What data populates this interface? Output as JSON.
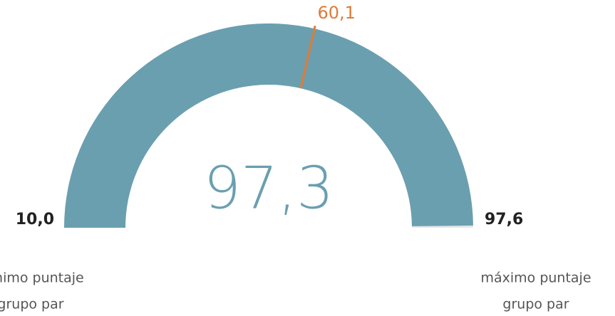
{
  "chart_data": {
    "type": "gauge",
    "value": 97.3,
    "value_label": "97,3",
    "range": [
      10,
      97.6
    ],
    "range_labels": [
      "10,0",
      "97,6"
    ],
    "target": 60.1,
    "target_label": "60,1",
    "captions": [
      [
        "mínimo puntaje",
        "grupo par"
      ],
      [
        "máximo puntaje",
        "grupo par"
      ]
    ],
    "color": "#6a9fb0",
    "track_color": "#e6e6e6",
    "target_color": "#e07b39"
  }
}
